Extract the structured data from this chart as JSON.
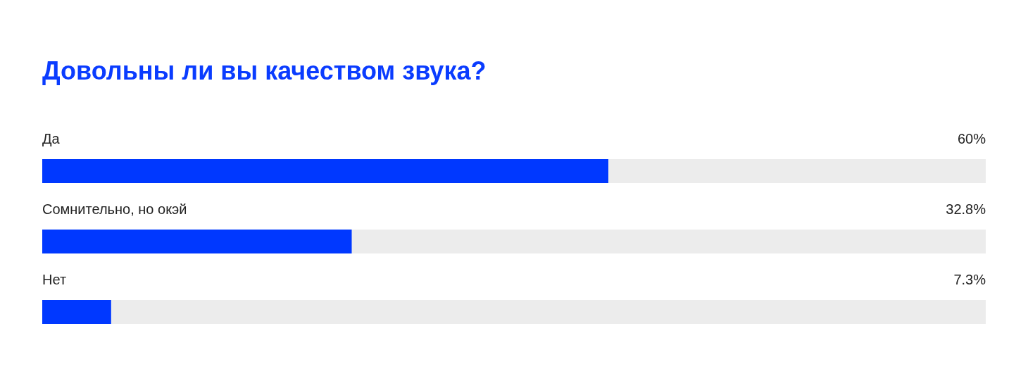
{
  "chart_data": {
    "type": "bar",
    "orientation": "horizontal",
    "title": "Довольны ли вы качеством звука?",
    "categories": [
      "Да",
      "Сомнительно, но окэй",
      "Нет"
    ],
    "values": [
      60,
      32.8,
      7.3
    ],
    "value_labels": [
      "60%",
      "32.8%",
      "7.3%"
    ],
    "color": "#0038ff",
    "xlim": [
      0,
      100
    ]
  }
}
